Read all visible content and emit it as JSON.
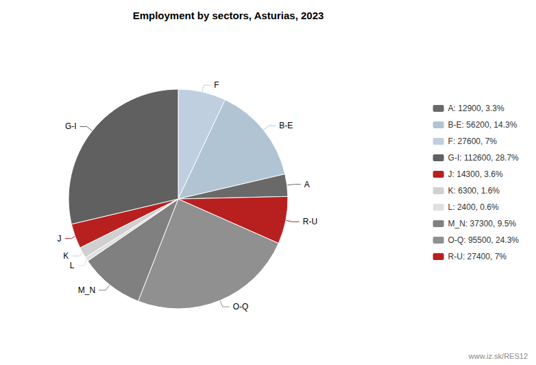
{
  "chart_data": {
    "type": "pie",
    "title": "Employment by sectors, Asturias, 2023",
    "categories": [
      "F",
      "B-E",
      "A",
      "R-U",
      "O-Q",
      "M_N",
      "L",
      "K",
      "J",
      "G-I"
    ],
    "values": [
      27600,
      56200,
      12900,
      27400,
      95500,
      37300,
      2400,
      6300,
      14300,
      112600
    ],
    "colors": [
      "#c0cfe0",
      "#b0c4d4",
      "#696969",
      "#b82020",
      "#909090",
      "#808080",
      "#e0e0e0",
      "#d0d0d0",
      "#b82020",
      "#606060"
    ],
    "legend": "right",
    "legend_entries": [
      {
        "name": "A",
        "label": "A: 12900, 3.3%"
      },
      {
        "name": "B-E",
        "label": "B-E: 56200, 14.3%"
      },
      {
        "name": "F",
        "label": "F: 27600, 7%"
      },
      {
        "name": "G-I",
        "label": "G-I: 112600, 28.7%"
      },
      {
        "name": "J",
        "label": "J: 14300, 3.6%"
      },
      {
        "name": "K",
        "label": "K: 6300, 1.6%"
      },
      {
        "name": "L",
        "label": "L: 2400, 0.6%"
      },
      {
        "name": "M_N",
        "label": "M_N: 37300, 9.5%"
      },
      {
        "name": "O-Q",
        "label": "O-Q: 95500, 24.3%"
      },
      {
        "name": "R-U",
        "label": "R-U: 27400, 7%"
      }
    ],
    "annotations": [
      "www.iz.sk/RES12"
    ]
  }
}
